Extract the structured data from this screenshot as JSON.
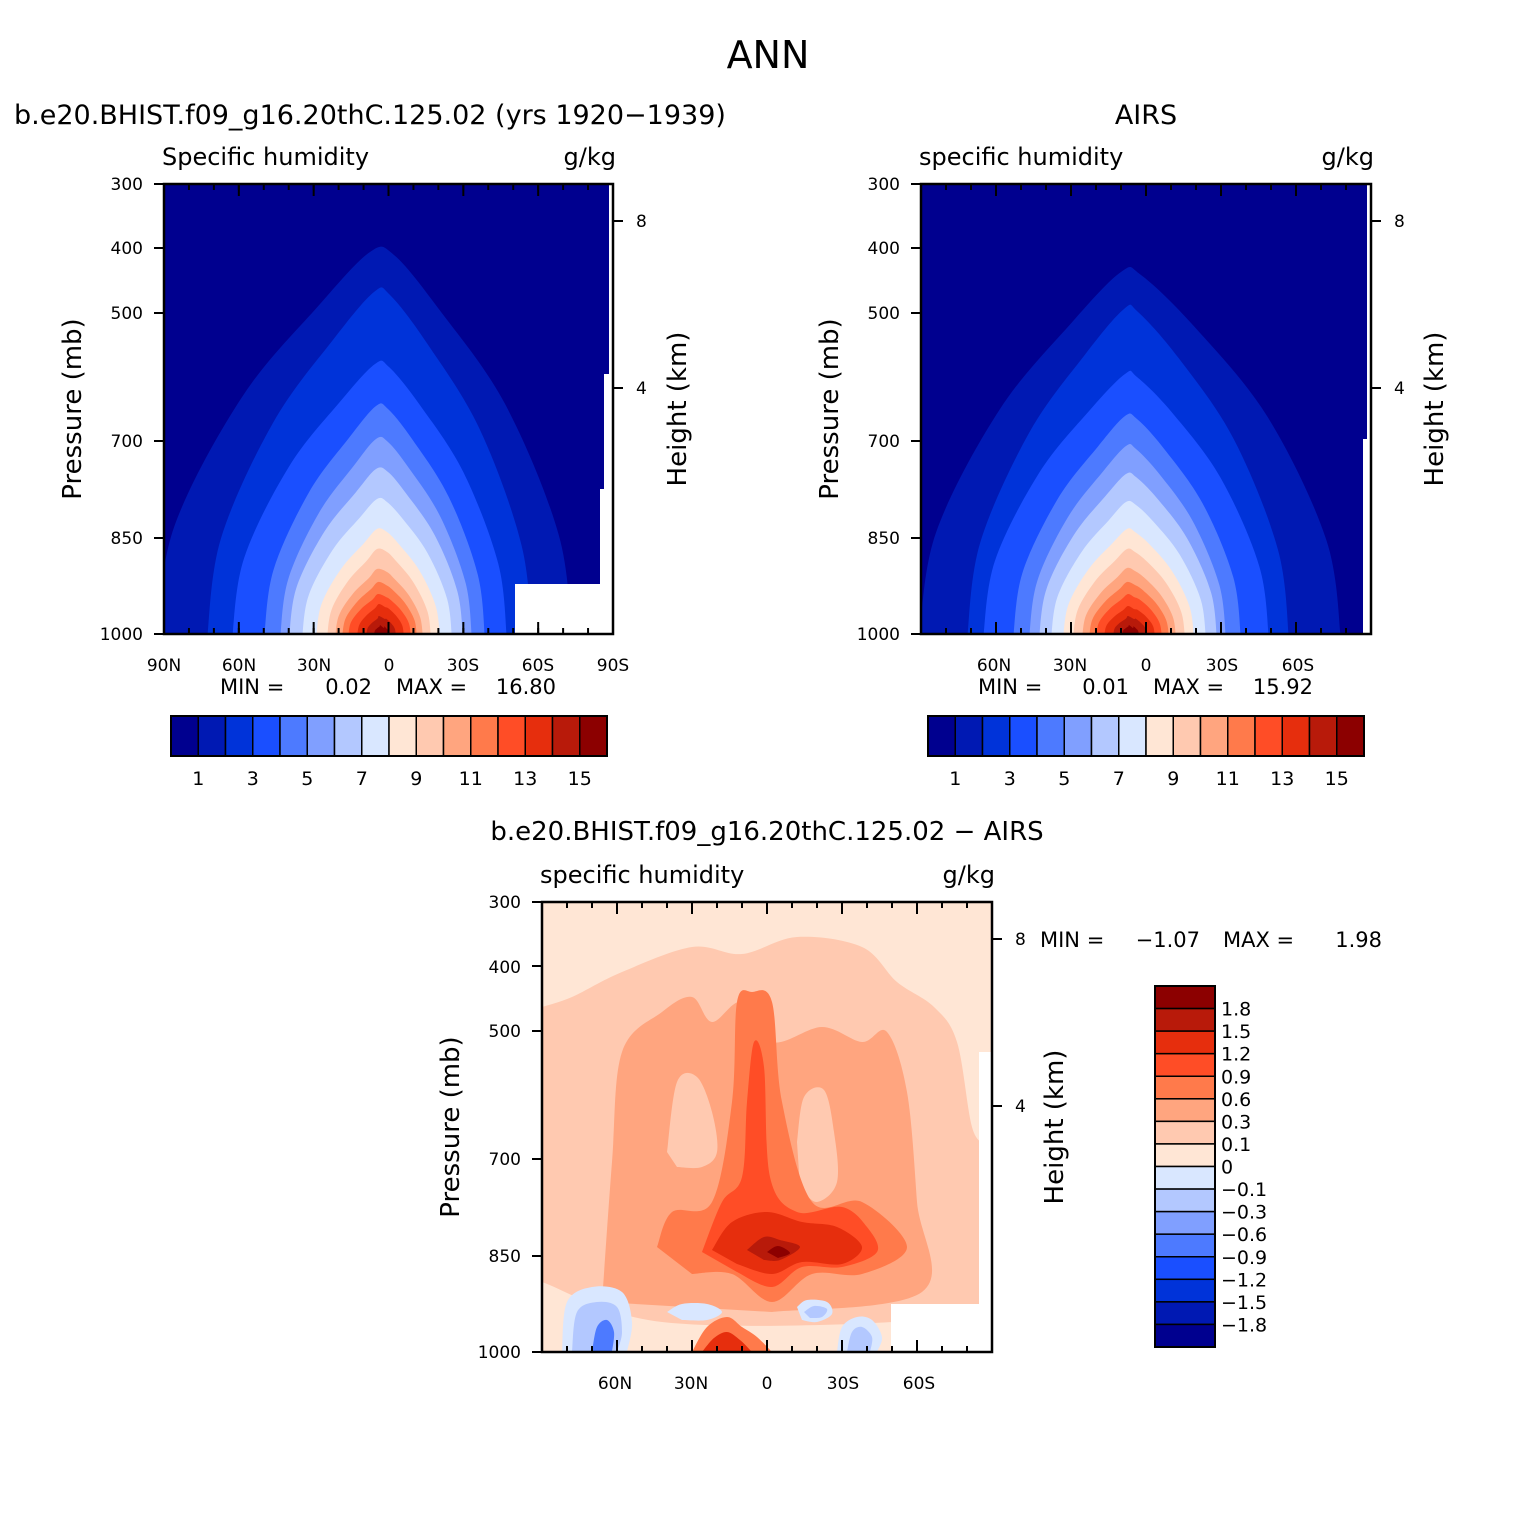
{
  "figure_title": "ANN",
  "colors": {
    "abs_scale": [
      "#00008f",
      "#0019b3",
      "#0033d9",
      "#1a4fff",
      "#4d7aff",
      "#809fff",
      "#b3c8ff",
      "#d9e7ff",
      "#ffe6d5",
      "#ffc9b0",
      "#ffa57f",
      "#ff7a4b",
      "#ff4d26",
      "#e62e0d",
      "#b81a0a",
      "#8c0000"
    ],
    "diff_scale": [
      "#00008f",
      "#0019b3",
      "#0033d9",
      "#1a4fff",
      "#4d7aff",
      "#809fff",
      "#b3c8ff",
      "#d9e7ff",
      "#ffe6d5",
      "#ffc9b0",
      "#ffa57f",
      "#ff7a4b",
      "#ff4d26",
      "#e62e0d",
      "#b81a0a",
      "#8c0000"
    ]
  },
  "panels": [
    {
      "id": "model",
      "heading": "b.e20.BHIST.f09_g16.20thC.125.02 (yrs 1920-1939)",
      "left_label": "Specific humidity",
      "right_label": "g/kg",
      "ylabel": "Pressure (mb)",
      "ylabel_right": "Height (km)",
      "min_label": "MIN =",
      "min_value": "0.02",
      "max_label": "MAX =",
      "max_value": "16.80",
      "colorbar_labels": [
        "1",
        "3",
        "5",
        "7",
        "9",
        "11",
        "13",
        "15"
      ]
    },
    {
      "id": "obs",
      "heading": "AIRS",
      "left_label": "specific humidity",
      "right_label": "g/kg",
      "ylabel": "Pressure (mb)",
      "ylabel_right": "Height (km)",
      "min_label": "MIN =",
      "min_value": "0.01",
      "max_label": "MAX =",
      "max_value": "15.92",
      "colorbar_labels": [
        "1",
        "3",
        "5",
        "7",
        "9",
        "11",
        "13",
        "15"
      ]
    },
    {
      "id": "diff",
      "heading": "b.e20.BHIST.f09_g16.20thC.125.02 - AIRS",
      "left_label": "specific humidity",
      "right_label": "g/kg",
      "ylabel": "Pressure (mb)",
      "ylabel_right": "Height (km)",
      "min_label": "MIN =",
      "min_value": "-1.07",
      "max_label": "MAX =",
      "max_value": "1.98",
      "colorbar_labels": [
        "1.8",
        "1.5",
        "1.2",
        "0.9",
        "0.6",
        "0.3",
        "0.1",
        "0",
        "-0.1",
        "-0.3",
        "-0.6",
        "-0.9",
        "-1.2",
        "-1.5",
        "-1.8"
      ]
    }
  ],
  "chart_data": [
    {
      "type": "heatmap",
      "title": "b.e20.BHIST.f09_g16.20thC.125.02 (yrs 1920-1939)",
      "variable": "Specific humidity",
      "units": "g/kg",
      "xlabel": "",
      "ylabel": "Pressure (mb)",
      "ylabel_right": "Height (km)",
      "x_ticks": [
        "90N",
        "60N",
        "30N",
        "0",
        "30S",
        "60S",
        "90S"
      ],
      "y_ticks": [
        300,
        400,
        500,
        700,
        850,
        1000
      ],
      "y_right_ticks": [
        8,
        4
      ],
      "contour_levels": [
        1,
        2,
        3,
        4,
        5,
        6,
        7,
        8,
        9,
        10,
        11,
        12,
        13,
        14,
        15
      ],
      "colorbar_labels": [
        1,
        3,
        5,
        7,
        9,
        11,
        13,
        15
      ],
      "min": 0.02,
      "max": 16.8,
      "peak": {
        "lat": 5,
        "pressure": 1000,
        "value": 16.8
      }
    },
    {
      "type": "heatmap",
      "title": "AIRS",
      "variable": "specific humidity",
      "units": "g/kg",
      "xlabel": "",
      "ylabel": "Pressure (mb)",
      "ylabel_right": "Height (km)",
      "x_ticks": [
        "60N",
        "30N",
        "0",
        "30S",
        "60S"
      ],
      "y_ticks": [
        300,
        400,
        500,
        700,
        850,
        1000
      ],
      "y_right_ticks": [
        8,
        4
      ],
      "contour_levels": [
        1,
        2,
        3,
        4,
        5,
        6,
        7,
        8,
        9,
        10,
        11,
        12,
        13,
        14,
        15
      ],
      "colorbar_labels": [
        1,
        3,
        5,
        7,
        9,
        11,
        13,
        15
      ],
      "min": 0.01,
      "max": 15.92,
      "peak": {
        "lat": 5,
        "pressure": 1000,
        "value": 15.92
      }
    },
    {
      "type": "heatmap",
      "title": "b.e20.BHIST.f09_g16.20thC.125.02 - AIRS",
      "variable": "specific humidity",
      "units": "g/kg",
      "xlabel": "",
      "ylabel": "Pressure (mb)",
      "ylabel_right": "Height (km)",
      "x_ticks": [
        "60N",
        "30N",
        "0",
        "30S",
        "60S"
      ],
      "y_ticks": [
        300,
        400,
        500,
        700,
        850,
        1000
      ],
      "y_right_ticks": [
        8,
        4
      ],
      "contour_levels": [
        -1.8,
        -1.5,
        -1.2,
        -0.9,
        -0.6,
        -0.3,
        -0.1,
        0,
        0.1,
        0.3,
        0.6,
        0.9,
        1.2,
        1.5,
        1.8
      ],
      "colorbar_labels": [
        1.8,
        1.5,
        1.2,
        0.9,
        0.6,
        0.3,
        0.1,
        0,
        -0.1,
        -0.3,
        -0.6,
        -0.9,
        -1.2,
        -1.5,
        -1.8
      ],
      "min": -1.07,
      "max": 1.98,
      "peak": {
        "lat": -5,
        "pressure": 850,
        "value": 1.98
      }
    }
  ]
}
